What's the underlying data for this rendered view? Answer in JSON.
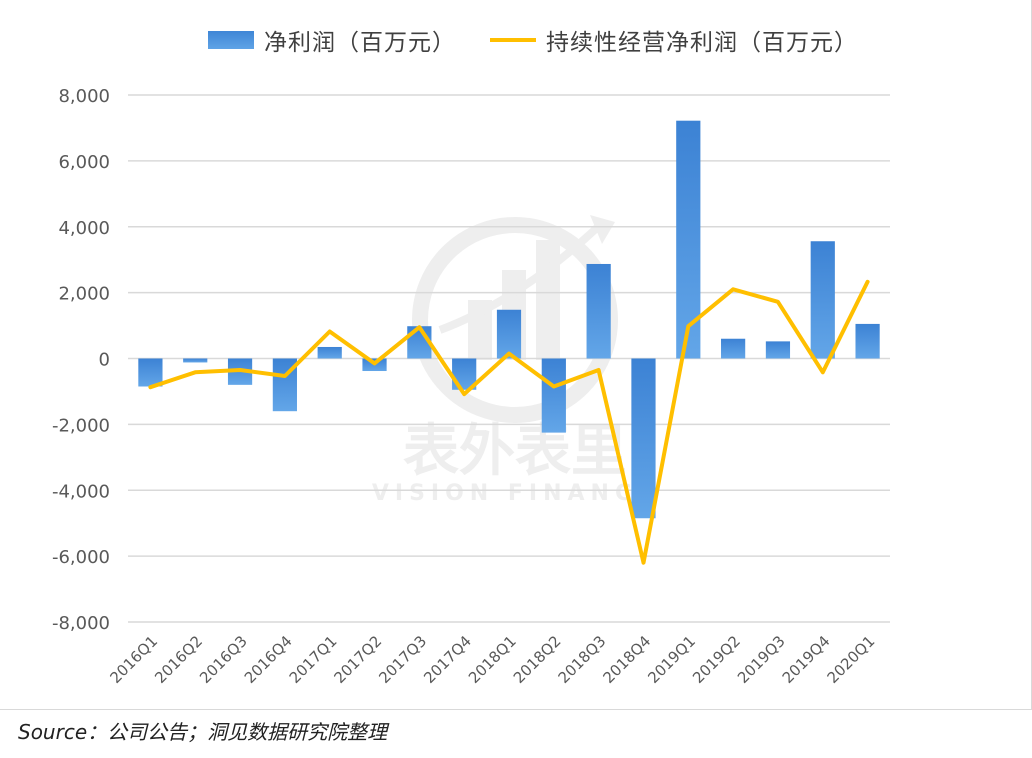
{
  "legend": {
    "bar_label": "净利润（百万元）",
    "line_label": "持续性经营净利润（百万元）"
  },
  "watermark": {
    "cn": "表外表里",
    "en": "VISION FINANCE"
  },
  "source_note": "Source：公司公告；洞见数据研究院整理",
  "colors": {
    "bar": "#4a90d9",
    "line": "#ffbf00",
    "grid": "#d9d9d9",
    "axis_text": "#595959"
  },
  "chart_data": {
    "type": "bar",
    "categories": [
      "2016Q1",
      "2016Q2",
      "2016Q3",
      "2016Q4",
      "2017Q1",
      "2017Q2",
      "2017Q3",
      "2017Q4",
      "2018Q1",
      "2018Q2",
      "2018Q3",
      "2018Q4",
      "2019Q1",
      "2019Q2",
      "2019Q3",
      "2019Q4",
      "2020Q1"
    ],
    "series": [
      {
        "name": "净利润（百万元）",
        "type": "bar",
        "values": [
          -850,
          -120,
          -800,
          -1600,
          350,
          -380,
          980,
          -950,
          1480,
          -2250,
          2870,
          -4850,
          7220,
          600,
          520,
          3560,
          1050
        ]
      },
      {
        "name": "持续性经营净利润（百万元）",
        "type": "line",
        "values": [
          -870,
          -420,
          -350,
          -530,
          820,
          -150,
          950,
          -1080,
          150,
          -850,
          -350,
          -6200,
          980,
          2100,
          1720,
          -420,
          2330
        ]
      }
    ],
    "ylim": [
      -8000,
      8000
    ],
    "yticks": [
      -8000,
      -6000,
      -4000,
      -2000,
      0,
      2000,
      4000,
      6000,
      8000
    ],
    "ytick_labels": [
      "-8,000",
      "-6,000",
      "-4,000",
      "-2,000",
      "0",
      "2,000",
      "4,000",
      "6,000",
      "8,000"
    ],
    "grid": true,
    "legend_position": "top"
  }
}
